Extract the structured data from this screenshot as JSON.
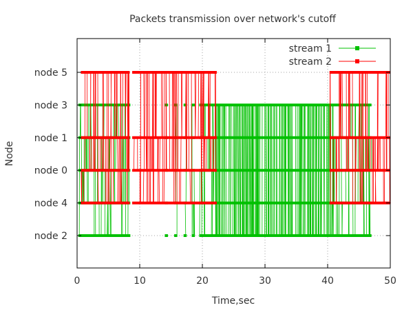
{
  "chart_data": {
    "type": "line",
    "title": "Packets transmission over network's cutoff",
    "xlabel": "Time,sec",
    "ylabel": "Node",
    "xlim": [
      0,
      50
    ],
    "x_ticks": [
      0,
      10,
      20,
      30,
      40,
      50
    ],
    "categories": [
      "node 2",
      "node 4",
      "node 0",
      "node 1",
      "node 3",
      "node 5"
    ],
    "grid": true,
    "legend_position": "top-right",
    "series": [
      {
        "name": "stream 1",
        "color": "#00c000",
        "active_nodes": [
          "node 2",
          "node 4",
          "node 0",
          "node 1",
          "node 3"
        ],
        "active_intervals": [
          [
            0.2,
            8.5
          ],
          [
            14.0,
            14.5
          ],
          [
            15.5,
            16.0
          ],
          [
            17.0,
            17.5
          ],
          [
            18.3,
            18.8
          ],
          [
            19.5,
            47.0
          ]
        ],
        "dense_interval": [
          22.0,
          40.5
        ]
      },
      {
        "name": "stream 2",
        "color": "#ff0000",
        "active_nodes": [
          "node 4",
          "node 0",
          "node 1",
          "node 5"
        ],
        "active_intervals": [
          [
            0.6,
            8.4
          ],
          [
            8.8,
            22.3
          ],
          [
            40.3,
            50.0
          ]
        ]
      }
    ]
  }
}
